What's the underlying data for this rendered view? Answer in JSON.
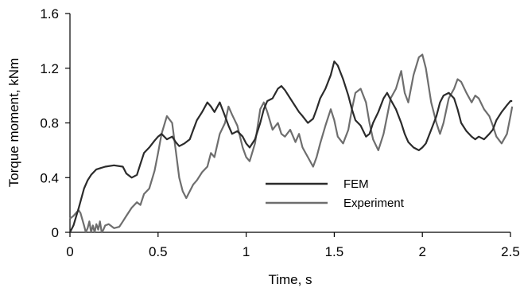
{
  "chart_data": {
    "type": "line",
    "title": "",
    "xlabel": "Time, s",
    "ylabel": "Torque moment, kNm",
    "xlim": [
      0,
      2.5
    ],
    "ylim": [
      0,
      1.6
    ],
    "x_ticks": [
      0,
      0.5,
      1,
      1.5,
      2,
      2.5
    ],
    "x_tick_labels": [
      "0",
      "0.5",
      "1",
      "1.5",
      "2",
      "2.5"
    ],
    "y_ticks": [
      0,
      0.4,
      0.8,
      1.2,
      1.6
    ],
    "y_tick_labels": [
      "0",
      "0.4",
      "0.8",
      "1.2",
      "1.6"
    ],
    "grid": false,
    "legend_position": "center",
    "series": [
      {
        "name": "FEM",
        "color": "#2b2b2b",
        "x": [
          0,
          0.02,
          0.05,
          0.08,
          0.1,
          0.12,
          0.15,
          0.2,
          0.25,
          0.3,
          0.32,
          0.35,
          0.38,
          0.4,
          0.42,
          0.45,
          0.48,
          0.5,
          0.52,
          0.55,
          0.58,
          0.6,
          0.62,
          0.65,
          0.68,
          0.7,
          0.72,
          0.75,
          0.78,
          0.8,
          0.82,
          0.85,
          0.88,
          0.9,
          0.92,
          0.95,
          0.98,
          1.0,
          1.02,
          1.05,
          1.08,
          1.1,
          1.12,
          1.15,
          1.18,
          1.2,
          1.22,
          1.25,
          1.28,
          1.3,
          1.32,
          1.35,
          1.38,
          1.4,
          1.42,
          1.45,
          1.48,
          1.5,
          1.52,
          1.55,
          1.58,
          1.6,
          1.62,
          1.65,
          1.68,
          1.7,
          1.72,
          1.75,
          1.78,
          1.8,
          1.82,
          1.85,
          1.88,
          1.9,
          1.92,
          1.95,
          1.98,
          2.0,
          2.02,
          2.05,
          2.08,
          2.1,
          2.12,
          2.15,
          2.18,
          2.2,
          2.22,
          2.25,
          2.28,
          2.3,
          2.32,
          2.35,
          2.38,
          2.4,
          2.42,
          2.45,
          2.48,
          2.5,
          2.51
        ],
        "y": [
          0,
          0.05,
          0.18,
          0.32,
          0.38,
          0.42,
          0.46,
          0.48,
          0.49,
          0.48,
          0.43,
          0.4,
          0.42,
          0.5,
          0.58,
          0.62,
          0.67,
          0.7,
          0.72,
          0.68,
          0.7,
          0.66,
          0.63,
          0.65,
          0.68,
          0.75,
          0.82,
          0.88,
          0.95,
          0.92,
          0.88,
          0.95,
          0.85,
          0.78,
          0.72,
          0.74,
          0.7,
          0.65,
          0.62,
          0.68,
          0.8,
          0.9,
          0.96,
          0.98,
          1.05,
          1.07,
          1.04,
          0.98,
          0.92,
          0.88,
          0.85,
          0.8,
          0.83,
          0.9,
          0.98,
          1.05,
          1.15,
          1.25,
          1.22,
          1.12,
          1.0,
          0.9,
          0.82,
          0.78,
          0.7,
          0.72,
          0.8,
          0.88,
          0.98,
          1.02,
          0.97,
          0.9,
          0.8,
          0.72,
          0.66,
          0.62,
          0.6,
          0.62,
          0.65,
          0.75,
          0.85,
          0.95,
          1.0,
          1.02,
          0.98,
          0.9,
          0.8,
          0.74,
          0.7,
          0.68,
          0.7,
          0.68,
          0.72,
          0.75,
          0.82,
          0.88,
          0.93,
          0.96,
          0.96
        ]
      },
      {
        "name": "Experiment",
        "color": "#6e6e6e",
        "x": [
          0,
          0.02,
          0.04,
          0.05,
          0.06,
          0.08,
          0.09,
          0.1,
          0.11,
          0.12,
          0.13,
          0.14,
          0.15,
          0.16,
          0.17,
          0.18,
          0.19,
          0.2,
          0.22,
          0.25,
          0.28,
          0.3,
          0.32,
          0.35,
          0.38,
          0.4,
          0.42,
          0.45,
          0.48,
          0.5,
          0.52,
          0.55,
          0.58,
          0.6,
          0.62,
          0.64,
          0.66,
          0.68,
          0.7,
          0.72,
          0.75,
          0.78,
          0.8,
          0.82,
          0.85,
          0.88,
          0.9,
          0.92,
          0.95,
          0.98,
          1.0,
          1.02,
          1.05,
          1.08,
          1.1,
          1.12,
          1.15,
          1.18,
          1.2,
          1.22,
          1.25,
          1.28,
          1.3,
          1.32,
          1.35,
          1.38,
          1.4,
          1.42,
          1.45,
          1.48,
          1.5,
          1.52,
          1.55,
          1.58,
          1.6,
          1.62,
          1.65,
          1.68,
          1.7,
          1.72,
          1.75,
          1.78,
          1.8,
          1.82,
          1.85,
          1.88,
          1.9,
          1.92,
          1.95,
          1.98,
          2.0,
          2.02,
          2.05,
          2.08,
          2.1,
          2.12,
          2.15,
          2.18,
          2.2,
          2.22,
          2.25,
          2.28,
          2.3,
          2.32,
          2.35,
          2.38,
          2.4,
          2.42,
          2.45,
          2.48,
          2.5,
          2.51
        ],
        "y": [
          0.1,
          0.12,
          0.15,
          0.16,
          0.14,
          0.05,
          0.0,
          0.03,
          0.08,
          0.0,
          0.05,
          0.0,
          0.06,
          0.02,
          0.08,
          0.0,
          0.02,
          0.05,
          0.06,
          0.03,
          0.04,
          0.08,
          0.12,
          0.18,
          0.22,
          0.2,
          0.28,
          0.32,
          0.45,
          0.58,
          0.72,
          0.85,
          0.8,
          0.6,
          0.4,
          0.3,
          0.25,
          0.3,
          0.35,
          0.38,
          0.44,
          0.48,
          0.58,
          0.55,
          0.72,
          0.8,
          0.92,
          0.86,
          0.78,
          0.62,
          0.55,
          0.52,
          0.65,
          0.9,
          0.95,
          0.88,
          0.75,
          0.8,
          0.72,
          0.7,
          0.75,
          0.66,
          0.72,
          0.62,
          0.55,
          0.48,
          0.55,
          0.65,
          0.78,
          0.9,
          0.82,
          0.7,
          0.65,
          0.75,
          0.9,
          1.02,
          1.05,
          0.95,
          0.8,
          0.68,
          0.6,
          0.72,
          0.85,
          0.98,
          1.05,
          1.18,
          1.02,
          0.95,
          1.15,
          1.28,
          1.3,
          1.2,
          0.95,
          0.8,
          0.72,
          0.8,
          0.98,
          1.05,
          1.12,
          1.1,
          1.02,
          0.95,
          1.0,
          0.98,
          0.9,
          0.85,
          0.78,
          0.7,
          0.65,
          0.72,
          0.85,
          0.92
        ]
      }
    ]
  }
}
